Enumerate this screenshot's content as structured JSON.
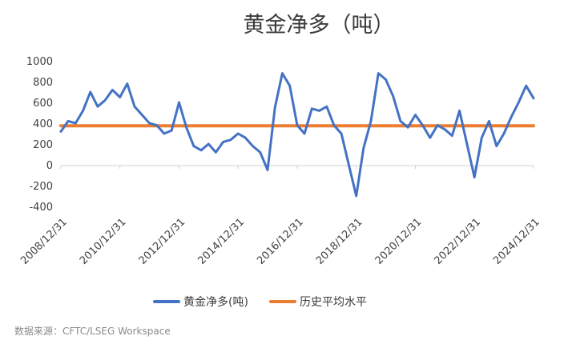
{
  "chart_data": {
    "type": "line",
    "title": "黄金净多（吨）",
    "xlabel": "",
    "ylabel": "",
    "ylim": [
      -400,
      1000
    ],
    "yticks": [
      1000,
      800,
      600,
      400,
      200,
      0,
      -200,
      -400
    ],
    "xlim": [
      "2008-12-31",
      "2024-12-31"
    ],
    "xticks": [
      "2008/12/31",
      "2010/12/31",
      "2012/12/31",
      "2014/12/31",
      "2016/12/31",
      "2018/12/31",
      "2020/12/31",
      "2022/12/31",
      "2024/12/31"
    ],
    "grid": false,
    "legend_position": "bottom",
    "series": [
      {
        "name": "黄金净多(吨)",
        "color": "#4472C4",
        "x": [
          "2008-12-31",
          "2009-03-31",
          "2009-06-30",
          "2009-09-30",
          "2009-12-31",
          "2010-03-31",
          "2010-06-30",
          "2010-09-30",
          "2010-12-31",
          "2011-03-31",
          "2011-06-30",
          "2011-09-30",
          "2011-12-31",
          "2012-03-31",
          "2012-06-30",
          "2012-09-30",
          "2012-12-31",
          "2013-03-31",
          "2013-06-30",
          "2013-09-30",
          "2013-12-31",
          "2014-03-31",
          "2014-06-30",
          "2014-09-30",
          "2014-12-31",
          "2015-03-31",
          "2015-06-30",
          "2015-09-30",
          "2015-12-31",
          "2016-03-31",
          "2016-06-30",
          "2016-09-30",
          "2016-12-31",
          "2017-03-31",
          "2017-06-30",
          "2017-09-30",
          "2017-12-31",
          "2018-03-31",
          "2018-06-30",
          "2018-09-30",
          "2018-12-31",
          "2019-03-31",
          "2019-06-30",
          "2019-09-30",
          "2019-12-31",
          "2020-03-31",
          "2020-06-30",
          "2020-09-30",
          "2020-12-31",
          "2021-03-31",
          "2021-06-30",
          "2021-09-30",
          "2021-12-31",
          "2022-03-31",
          "2022-06-30",
          "2022-09-30",
          "2022-12-31",
          "2023-03-31",
          "2023-06-30",
          "2023-09-30",
          "2023-12-31",
          "2024-03-31",
          "2024-06-30",
          "2024-09-30",
          "2024-12-31"
        ],
        "values": [
          320,
          420,
          400,
          520,
          700,
          560,
          620,
          720,
          650,
          780,
          560,
          480,
          400,
          380,
          300,
          330,
          600,
          360,
          180,
          140,
          200,
          120,
          220,
          240,
          300,
          260,
          180,
          120,
          -50,
          550,
          880,
          760,
          380,
          300,
          540,
          520,
          560,
          380,
          300,
          0,
          -300,
          160,
          420,
          880,
          820,
          660,
          420,
          360,
          480,
          380,
          260,
          380,
          340,
          280,
          520,
          200,
          -120,
          260,
          420,
          180,
          300,
          460,
          600,
          760,
          640
        ]
      },
      {
        "name": "历史平均水平",
        "color": "#ED7D31",
        "x": [
          "2008-12-31",
          "2024-12-31"
        ],
        "values": [
          375,
          375
        ]
      }
    ],
    "annotations": []
  },
  "source_note": "数据来源：CFTC/LSEG Workspace"
}
